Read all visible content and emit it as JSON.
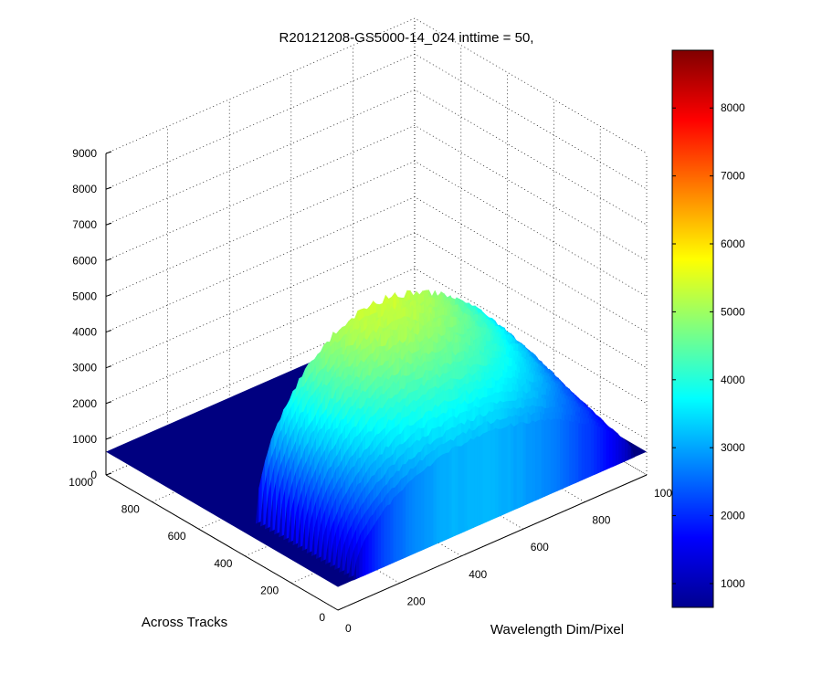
{
  "chart_data": {
    "type": "surface",
    "title": "R20121208-GS5000-14_024 inttime = 50,",
    "xlabel": "Across Tracks",
    "ylabel": "Wavelength Dim/Pixel",
    "zlabel": "",
    "x_range": [
      0,
      1000
    ],
    "y_range": [
      0,
      1000
    ],
    "zlim": [
      0,
      9000
    ],
    "x_ticks": [
      "0",
      "200",
      "400",
      "600",
      "800",
      "1000"
    ],
    "y_ticks": [
      "0",
      "200",
      "400",
      "600",
      "800",
      "1000"
    ],
    "z_ticks": [
      "0",
      "1000",
      "2000",
      "3000",
      "4000",
      "5000",
      "6000",
      "7000",
      "8000",
      "9000"
    ],
    "grid": true,
    "colormap": "jet",
    "colorbar": {
      "range": [
        650,
        8850
      ],
      "ticks": [
        "1000",
        "2000",
        "3000",
        "4000",
        "5000",
        "6000",
        "7000",
        "8000"
      ],
      "placement": "right"
    },
    "surface": {
      "baseline": 650,
      "peak": 5700,
      "signal_across_track_range": [
        0,
        420
      ],
      "signal_wavelength_range": [
        50,
        960
      ],
      "profile": "arched spectrum peaking near wavelength pixel 520"
    }
  }
}
